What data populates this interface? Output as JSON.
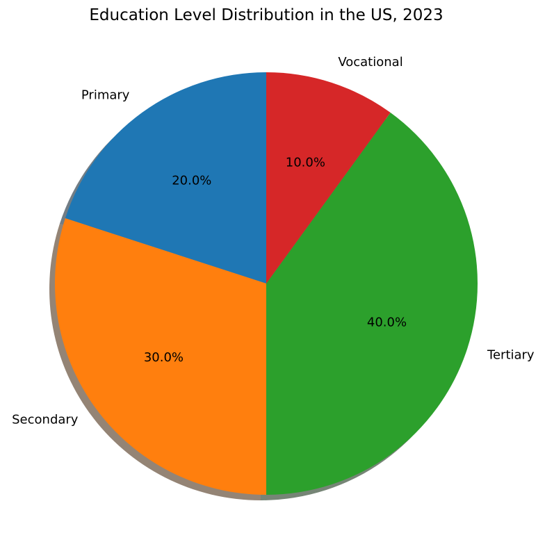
{
  "chart_data": {
    "type": "pie",
    "title": "Education Level Distribution in the US, 2023",
    "categories": [
      "Primary",
      "Secondary",
      "Tertiary",
      "Vocational"
    ],
    "values": [
      20,
      30,
      40,
      10
    ],
    "percent_labels": [
      "20.0%",
      "30.0%",
      "40.0%",
      "10.0%"
    ],
    "colors": [
      "#1f77b4",
      "#ff7f0e",
      "#2ca02c",
      "#d62728"
    ],
    "start_angle_deg": 90,
    "direction": "counterclockwise",
    "shadow": true,
    "legend": "none"
  }
}
